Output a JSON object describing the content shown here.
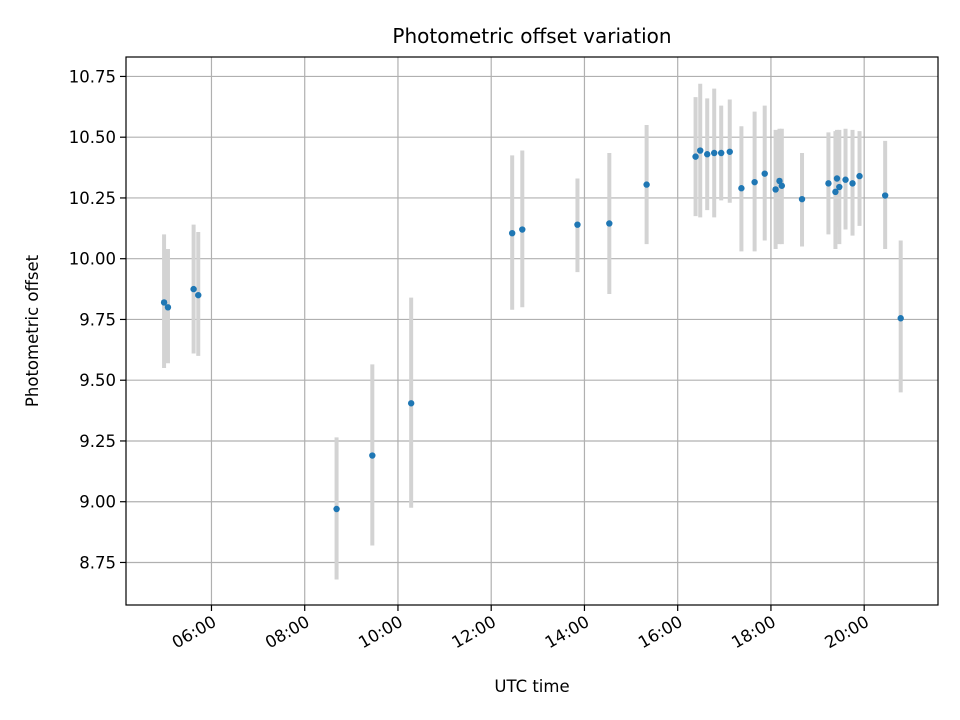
{
  "chart_data": {
    "type": "scatter",
    "title": "Photometric offset variation",
    "xlabel": "UTC time",
    "ylabel": "Photometric offset",
    "xlim": [
      "04:10",
      "21:35"
    ],
    "ylim": [
      8.575,
      10.83
    ],
    "grid": true,
    "x_ticks": [
      "06:00",
      "08:00",
      "10:00",
      "12:00",
      "14:00",
      "16:00",
      "18:00",
      "20:00"
    ],
    "y_ticks": [
      "8.75",
      "9.00",
      "9.25",
      "9.50",
      "9.75",
      "10.00",
      "10.25",
      "10.50",
      "10.75"
    ],
    "colors": {
      "points": "#1f77b4",
      "error_bars": "#d3d3d3",
      "grid": "#b0b0b0"
    },
    "series": [
      {
        "points": [
          {
            "x": "04:59",
            "y": 9.82,
            "err_low": 9.55,
            "err_high": 10.1
          },
          {
            "x": "05:04",
            "y": 9.8,
            "err_low": 9.57,
            "err_high": 10.04
          },
          {
            "x": "05:37",
            "y": 9.875,
            "err_low": 9.61,
            "err_high": 10.14
          },
          {
            "x": "05:43",
            "y": 9.85,
            "err_low": 9.6,
            "err_high": 10.11
          },
          {
            "x": "08:41",
            "y": 8.97,
            "err_low": 8.68,
            "err_high": 9.265
          },
          {
            "x": "09:27",
            "y": 9.19,
            "err_low": 8.82,
            "err_high": 9.565
          },
          {
            "x": "10:17",
            "y": 9.405,
            "err_low": 8.975,
            "err_high": 9.84
          },
          {
            "x": "12:27",
            "y": 10.105,
            "err_low": 9.79,
            "err_high": 10.425
          },
          {
            "x": "12:40",
            "y": 10.12,
            "err_low": 9.8,
            "err_high": 10.445
          },
          {
            "x": "13:51",
            "y": 10.14,
            "err_low": 9.945,
            "err_high": 10.33
          },
          {
            "x": "14:32",
            "y": 10.145,
            "err_low": 9.855,
            "err_high": 10.435
          },
          {
            "x": "15:20",
            "y": 10.305,
            "err_low": 10.06,
            "err_high": 10.55
          },
          {
            "x": "16:23",
            "y": 10.42,
            "err_low": 10.175,
            "err_high": 10.665
          },
          {
            "x": "16:29",
            "y": 10.445,
            "err_low": 10.17,
            "err_high": 10.72
          },
          {
            "x": "16:38",
            "y": 10.43,
            "err_low": 10.2,
            "err_high": 10.66
          },
          {
            "x": "16:47",
            "y": 10.435,
            "err_low": 10.17,
            "err_high": 10.7
          },
          {
            "x": "16:56",
            "y": 10.435,
            "err_low": 10.24,
            "err_high": 10.63
          },
          {
            "x": "17:07",
            "y": 10.44,
            "err_low": 10.23,
            "err_high": 10.655
          },
          {
            "x": "17:22",
            "y": 10.29,
            "err_low": 10.03,
            "err_high": 10.545
          },
          {
            "x": "17:39",
            "y": 10.315,
            "err_low": 10.03,
            "err_high": 10.605
          },
          {
            "x": "17:52",
            "y": 10.35,
            "err_low": 10.075,
            "err_high": 10.63
          },
          {
            "x": "18:06",
            "y": 10.285,
            "err_low": 10.04,
            "err_high": 10.53
          },
          {
            "x": "18:11",
            "y": 10.32,
            "err_low": 10.06,
            "err_high": 10.535
          },
          {
            "x": "18:14",
            "y": 10.3,
            "err_low": 10.06,
            "err_high": 10.535
          },
          {
            "x": "18:40",
            "y": 10.245,
            "err_low": 10.05,
            "err_high": 10.435
          },
          {
            "x": "19:14",
            "y": 10.31,
            "err_low": 10.1,
            "err_high": 10.52
          },
          {
            "x": "19:23",
            "y": 10.275,
            "err_low": 10.04,
            "err_high": 10.525
          },
          {
            "x": "19:25",
            "y": 10.33,
            "err_low": 10.13,
            "err_high": 10.53
          },
          {
            "x": "19:28",
            "y": 10.295,
            "err_low": 10.06,
            "err_high": 10.53
          },
          {
            "x": "19:36",
            "y": 10.325,
            "err_low": 10.12,
            "err_high": 10.535
          },
          {
            "x": "19:45",
            "y": 10.31,
            "err_low": 10.095,
            "err_high": 10.53
          },
          {
            "x": "19:54",
            "y": 10.34,
            "err_low": 10.135,
            "err_high": 10.525
          },
          {
            "x": "20:27",
            "y": 10.26,
            "err_low": 10.04,
            "err_high": 10.485
          },
          {
            "x": "20:47",
            "y": 9.755,
            "err_low": 9.45,
            "err_high": 10.075
          }
        ]
      }
    ]
  }
}
